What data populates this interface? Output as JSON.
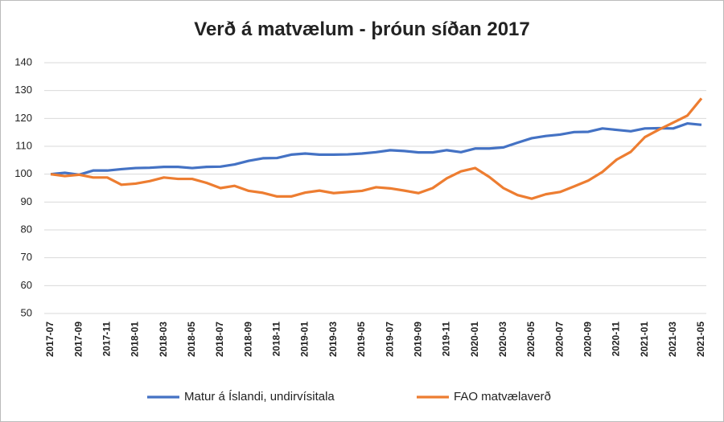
{
  "chart_data": {
    "type": "line",
    "title": "Verð á matvælum  - þróun síðan 2017",
    "categories": [
      "2017-07",
      null,
      "2017-09",
      null,
      "2017-11",
      null,
      "2018-01",
      null,
      "2018-03",
      null,
      "2018-05",
      null,
      "2018-07",
      null,
      "2018-09",
      null,
      "2018-11",
      null,
      "2019-01",
      null,
      "2019-03",
      null,
      "2019-05",
      null,
      "2019-07",
      null,
      "2019-09",
      null,
      "2019-11",
      null,
      "2020-01",
      null,
      "2020-03",
      null,
      "2020-05",
      null,
      "2020-07",
      null,
      "2020-09",
      null,
      "2020-11",
      null,
      "2021-01",
      null,
      "2021-03",
      null,
      "2021-05"
    ],
    "series": [
      {
        "name": "Matur á Íslandi, undirvísitala",
        "color": "#4472c4",
        "values": [
          100,
          100.5,
          99.8,
          101.3,
          101.3,
          101.8,
          102.2,
          102.3,
          102.6,
          102.6,
          102.2,
          102.6,
          102.7,
          103.5,
          104.8,
          105.7,
          105.8,
          107.0,
          107.4,
          107.0,
          107.0,
          107.1,
          107.4,
          107.9,
          108.6,
          108.3,
          107.8,
          107.8,
          108.6,
          107.9,
          109.2,
          109.2,
          109.6,
          111.3,
          112.9,
          113.7,
          114.2,
          115.1,
          115.2,
          116.4,
          115.9,
          115.4,
          116.4,
          116.5,
          116.4,
          118.2,
          117.7
        ]
      },
      {
        "name": "FAO matvælaverð",
        "color": "#ed7d31",
        "values": [
          100,
          99.3,
          99.8,
          98.8,
          98.8,
          96.2,
          96.6,
          97.5,
          98.8,
          98.3,
          98.3,
          96.9,
          95.0,
          95.8,
          94.0,
          93.3,
          92.0,
          92.0,
          93.4,
          94.1,
          93.2,
          93.6,
          94.0,
          95.3,
          94.9,
          94.1,
          93.2,
          95.0,
          98.5,
          101.0,
          102.2,
          99.0,
          95.0,
          92.5,
          91.2,
          92.8,
          93.6,
          95.6,
          97.7,
          100.8,
          105.2,
          108.0,
          113.3,
          116.0,
          118.5,
          121.0,
          127.2
        ]
      }
    ],
    "ylim": [
      50,
      140
    ],
    "yticks": [
      50,
      60,
      70,
      80,
      90,
      100,
      110,
      120,
      130,
      140
    ],
    "grid": true
  }
}
